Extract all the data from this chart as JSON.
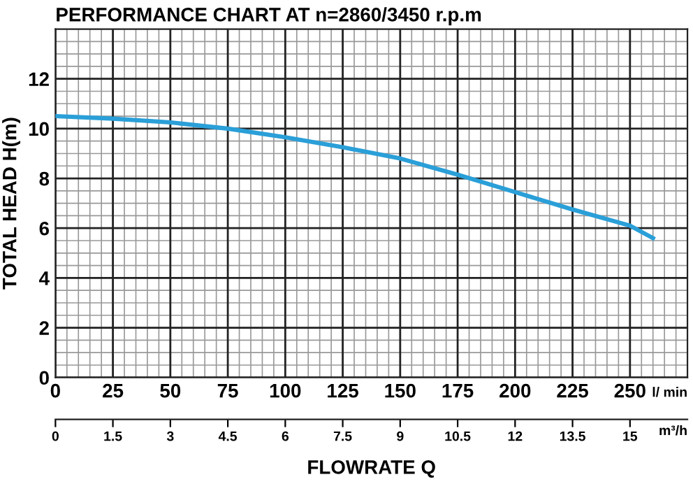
{
  "chart_data": {
    "type": "line",
    "title": "PERFORMANCE CHART AT n=2860/3450 r.p.m",
    "xlabel": "FLOWRATE Q",
    "ylabel": "TOTAL HEAD H(m)",
    "annotations": [
      "l/ min",
      "m³/h"
    ],
    "series": [
      {
        "color": "#2a9fd8",
        "x": [
          0,
          25,
          50,
          75,
          100,
          125,
          150,
          175,
          200,
          225,
          250,
          260
        ],
        "values": [
          10.5,
          10.4,
          10.25,
          10.0,
          9.65,
          9.25,
          8.8,
          8.15,
          7.45,
          6.75,
          6.1,
          5.6
        ]
      }
    ],
    "xlim": [
      0,
      275
    ],
    "xticks": [
      0,
      25,
      50,
      75,
      100,
      125,
      150,
      175,
      200,
      225,
      250
    ],
    "ylim": [
      0,
      14
    ],
    "yticks": [
      0,
      2,
      4,
      6,
      8,
      10,
      12
    ],
    "x2lim": [
      0,
      16.5
    ],
    "x2ticks": [
      0,
      1.5,
      3,
      4.5,
      6,
      7.5,
      9,
      10.5,
      12,
      13.5,
      15
    ],
    "grid": true,
    "marker": "none",
    "line_style": "solid"
  }
}
